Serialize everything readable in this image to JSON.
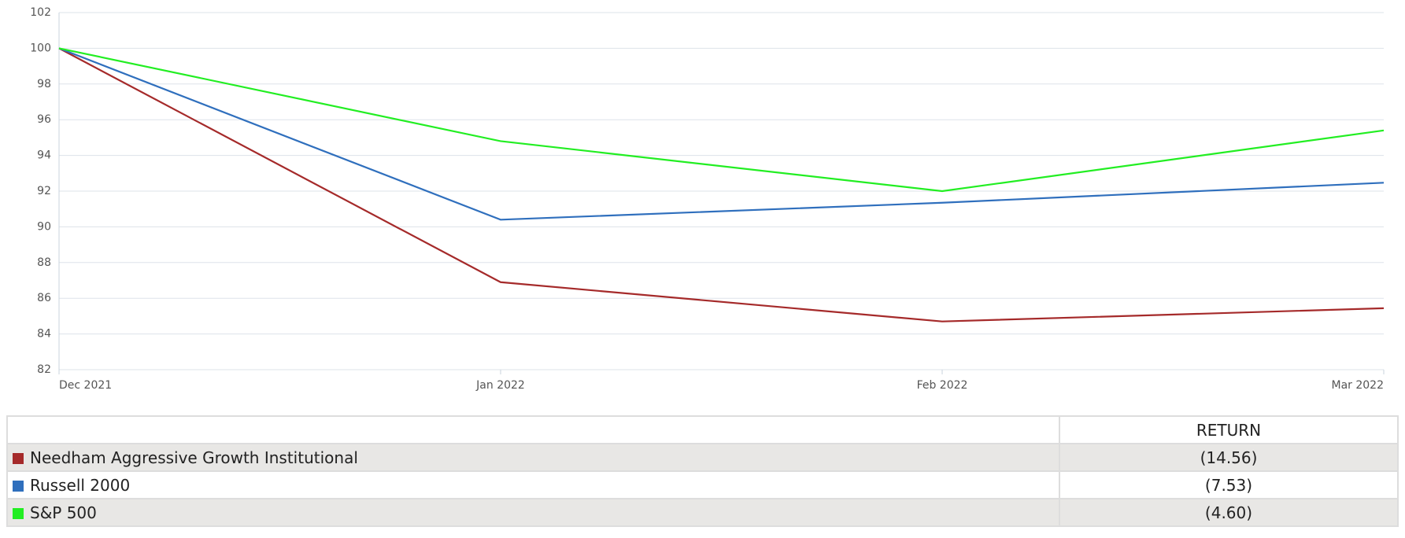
{
  "chart_data": {
    "type": "line",
    "categories": [
      "Dec 2021",
      "Jan 2022",
      "Feb 2022",
      "Mar 2022"
    ],
    "series": [
      {
        "name": "Needham Aggressive Growth Institutional",
        "color": "#a52a2a",
        "values": [
          100,
          86.9,
          84.7,
          85.44
        ]
      },
      {
        "name": "Russell 2000",
        "color": "#2f6fbd",
        "values": [
          100,
          90.4,
          91.35,
          92.47
        ]
      },
      {
        "name": "S&P 500",
        "color": "#22ee22",
        "values": [
          100,
          94.8,
          92.0,
          95.4
        ]
      }
    ],
    "ylim": [
      82,
      102
    ],
    "yticks": [
      82,
      84,
      86,
      88,
      90,
      92,
      94,
      96,
      98,
      100,
      102
    ],
    "grid": true
  },
  "table": {
    "header": "RETURN",
    "returns": [
      "(14.56)",
      "(7.53)",
      "(4.60)"
    ]
  }
}
